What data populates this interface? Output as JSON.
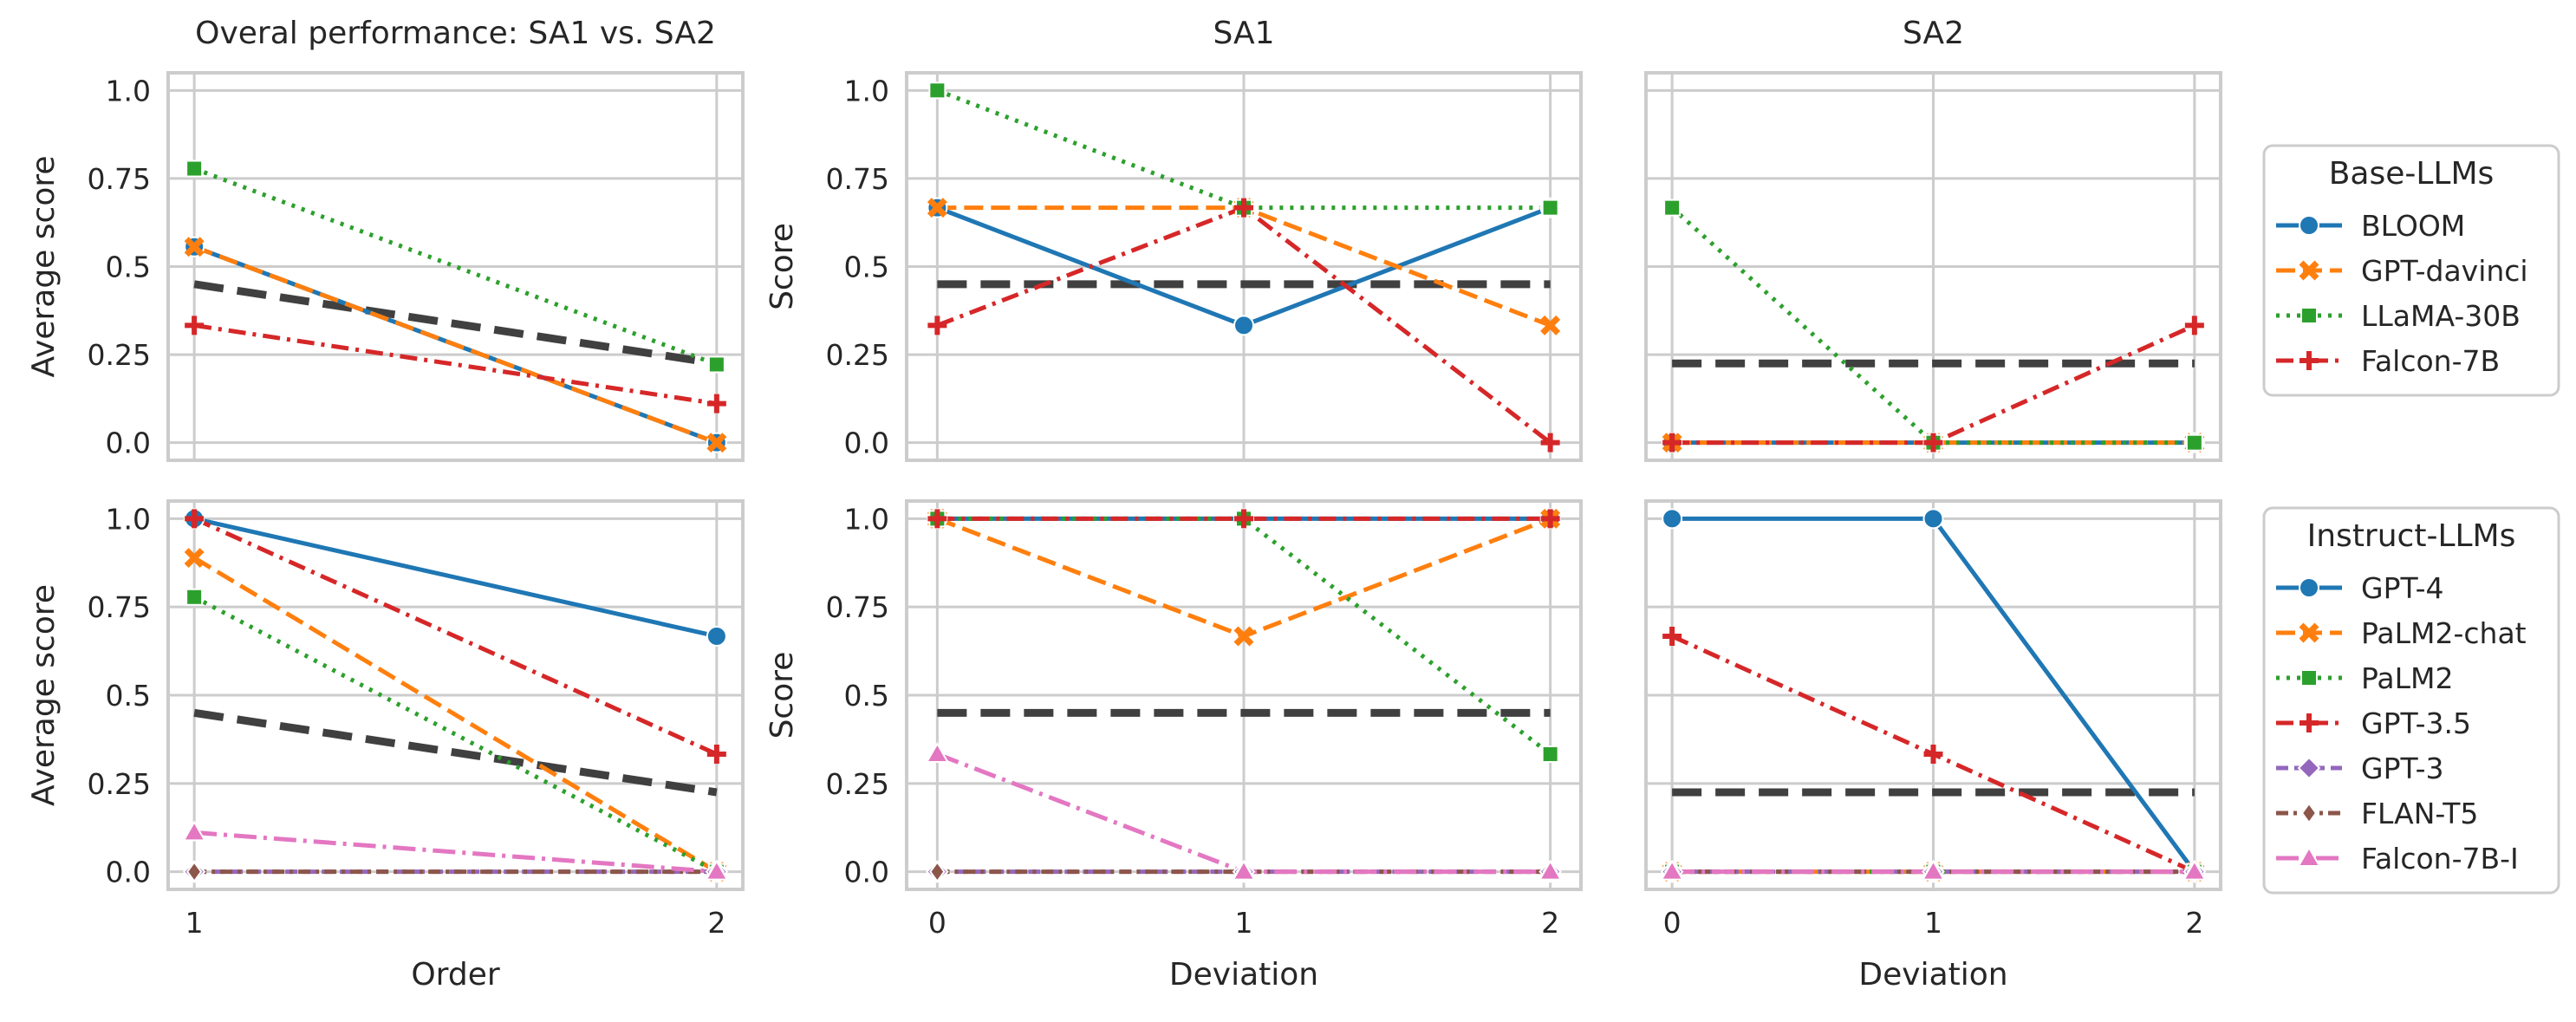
{
  "colors": {
    "BLOOM": "#1f77b4",
    "GPT-davinci": "#ff7f0e",
    "LLaMA-30B": "#2ca02c",
    "Falcon-7B": "#d62728",
    "GPT-4": "#1f77b4",
    "PaLM2-chat": "#ff7f0e",
    "PaLM2": "#2ca02c",
    "GPT-3.5": "#d62728",
    "GPT-3": "#9467bd",
    "FLAN-T5": "#8c564b",
    "Falcon-7B-I": "#e377c2",
    "reference": "#404040",
    "grid": "#cccccc",
    "frame": "#cccccc"
  },
  "legends": [
    {
      "title": "Base-LLMs",
      "entries": [
        {
          "name": "BLOOM",
          "marker": "circle",
          "dash": "solid"
        },
        {
          "name": "GPT-davinci",
          "marker": "x",
          "dash": "dashed"
        },
        {
          "name": "LLaMA-30B",
          "marker": "square",
          "dash": "dotted"
        },
        {
          "name": "Falcon-7B",
          "marker": "plus",
          "dash": "dashdot"
        }
      ]
    },
    {
      "title": "Instruct-LLMs",
      "entries": [
        {
          "name": "GPT-4",
          "marker": "circle",
          "dash": "solid"
        },
        {
          "name": "PaLM2-chat",
          "marker": "x",
          "dash": "dashed"
        },
        {
          "name": "PaLM2",
          "marker": "square",
          "dash": "dotted"
        },
        {
          "name": "GPT-3.5",
          "marker": "plus",
          "dash": "dashdot"
        },
        {
          "name": "GPT-3",
          "marker": "diamond",
          "dash": "dashed2"
        },
        {
          "name": "FLAN-T5",
          "marker": "thin-diamond",
          "dash": "dashdot2"
        },
        {
          "name": "Falcon-7B-I",
          "marker": "triangle",
          "dash": "dashdot3"
        }
      ]
    }
  ],
  "chart_data": [
    {
      "type": "line",
      "panel": "top-left",
      "title": "Overal performance: SA1 vs. SA2",
      "xlabel": "",
      "ylabel": "Average score",
      "x": [
        1,
        2
      ],
      "xlim": [
        0.95,
        2.05
      ],
      "ylim": [
        -0.05,
        1.05
      ],
      "xticks": [
        "1",
        "2"
      ],
      "yticks": [
        "0.0",
        "0.25",
        "0.5",
        "0.75",
        "1.0"
      ],
      "show_xticks": false,
      "show_yticks": true,
      "reference": {
        "name": "average",
        "values": [
          0.45,
          0.225
        ]
      },
      "series": [
        {
          "name": "BLOOM",
          "values": [
            0.556,
            0.0
          ]
        },
        {
          "name": "GPT-davinci",
          "values": [
            0.556,
            0.0
          ]
        },
        {
          "name": "LLaMA-30B",
          "values": [
            0.778,
            0.222
          ]
        },
        {
          "name": "Falcon-7B",
          "values": [
            0.333,
            0.111
          ]
        }
      ]
    },
    {
      "type": "line",
      "panel": "top-middle",
      "title": "SA1",
      "xlabel": "",
      "ylabel": "Score",
      "x": [
        0,
        1,
        2
      ],
      "xlim": [
        -0.1,
        2.1
      ],
      "ylim": [
        -0.05,
        1.05
      ],
      "xticks": [
        "0",
        "1",
        "2"
      ],
      "yticks": [
        "0.0",
        "0.25",
        "0.5",
        "0.75",
        "1.0"
      ],
      "show_xticks": false,
      "show_yticks": true,
      "reference": {
        "name": "average",
        "values": [
          0.45,
          0.45,
          0.45
        ]
      },
      "series": [
        {
          "name": "BLOOM",
          "values": [
            0.667,
            0.333,
            0.667
          ]
        },
        {
          "name": "GPT-davinci",
          "values": [
            0.667,
            0.667,
            0.333
          ]
        },
        {
          "name": "LLaMA-30B",
          "values": [
            1.0,
            0.667,
            0.667
          ]
        },
        {
          "name": "Falcon-7B",
          "values": [
            0.333,
            0.667,
            0.0
          ]
        }
      ]
    },
    {
      "type": "line",
      "panel": "top-right",
      "title": "SA2",
      "xlabel": "",
      "ylabel": "",
      "x": [
        0,
        1,
        2
      ],
      "xlim": [
        -0.1,
        2.1
      ],
      "ylim": [
        -0.05,
        1.05
      ],
      "xticks": [
        "0",
        "1",
        "2"
      ],
      "yticks": [
        "0.0",
        "0.25",
        "0.5",
        "0.75",
        "1.0"
      ],
      "show_xticks": false,
      "show_yticks": false,
      "reference": {
        "name": "average",
        "values": [
          0.225,
          0.225,
          0.225
        ]
      },
      "series": [
        {
          "name": "BLOOM",
          "values": [
            0.0,
            0.0,
            0.0
          ]
        },
        {
          "name": "GPT-davinci",
          "values": [
            0.0,
            0.0,
            0.0
          ]
        },
        {
          "name": "LLaMA-30B",
          "values": [
            0.667,
            0.0,
            0.0
          ]
        },
        {
          "name": "Falcon-7B",
          "values": [
            0.0,
            0.0,
            0.333
          ]
        }
      ]
    },
    {
      "type": "line",
      "panel": "bottom-left",
      "title": "",
      "xlabel": "Order",
      "ylabel": "Average score",
      "x": [
        1,
        2
      ],
      "xlim": [
        0.95,
        2.05
      ],
      "ylim": [
        -0.05,
        1.05
      ],
      "xticks": [
        "1",
        "2"
      ],
      "yticks": [
        "0.0",
        "0.25",
        "0.5",
        "0.75",
        "1.0"
      ],
      "show_xticks": true,
      "show_yticks": true,
      "reference": {
        "name": "average",
        "values": [
          0.45,
          0.225
        ]
      },
      "series": [
        {
          "name": "GPT-4",
          "values": [
            1.0,
            0.667
          ]
        },
        {
          "name": "PaLM2-chat",
          "values": [
            0.889,
            0.0
          ]
        },
        {
          "name": "PaLM2",
          "values": [
            0.778,
            0.0
          ]
        },
        {
          "name": "GPT-3.5",
          "values": [
            1.0,
            0.333
          ]
        },
        {
          "name": "GPT-3",
          "values": [
            0.0,
            0.0
          ]
        },
        {
          "name": "FLAN-T5",
          "values": [
            0.0,
            0.0
          ]
        },
        {
          "name": "Falcon-7B-I",
          "values": [
            0.111,
            0.0
          ]
        }
      ]
    },
    {
      "type": "line",
      "panel": "bottom-middle",
      "title": "",
      "xlabel": "Deviation",
      "ylabel": "Score",
      "x": [
        0,
        1,
        2
      ],
      "xlim": [
        -0.1,
        2.1
      ],
      "ylim": [
        -0.05,
        1.05
      ],
      "xticks": [
        "0",
        "1",
        "2"
      ],
      "yticks": [
        "0.0",
        "0.25",
        "0.5",
        "0.75",
        "1.0"
      ],
      "show_xticks": true,
      "show_yticks": true,
      "reference": {
        "name": "average",
        "values": [
          0.45,
          0.45,
          0.45
        ]
      },
      "series": [
        {
          "name": "GPT-4",
          "values": [
            1.0,
            1.0,
            1.0
          ]
        },
        {
          "name": "PaLM2-chat",
          "values": [
            1.0,
            0.667,
            1.0
          ]
        },
        {
          "name": "PaLM2",
          "values": [
            1.0,
            1.0,
            0.333
          ]
        },
        {
          "name": "GPT-3.5",
          "values": [
            1.0,
            1.0,
            1.0
          ]
        },
        {
          "name": "GPT-3",
          "values": [
            0.0,
            0.0,
            0.0
          ]
        },
        {
          "name": "FLAN-T5",
          "values": [
            0.0,
            0.0,
            0.0
          ]
        },
        {
          "name": "Falcon-7B-I",
          "values": [
            0.333,
            0.0,
            0.0
          ]
        }
      ]
    },
    {
      "type": "line",
      "panel": "bottom-right",
      "title": "",
      "xlabel": "Deviation",
      "ylabel": "",
      "x": [
        0,
        1,
        2
      ],
      "xlim": [
        -0.1,
        2.1
      ],
      "ylim": [
        -0.05,
        1.05
      ],
      "xticks": [
        "0",
        "1",
        "2"
      ],
      "yticks": [
        "0.0",
        "0.25",
        "0.5",
        "0.75",
        "1.0"
      ],
      "show_xticks": true,
      "show_yticks": false,
      "reference": {
        "name": "average",
        "values": [
          0.225,
          0.225,
          0.225
        ]
      },
      "series": [
        {
          "name": "GPT-4",
          "values": [
            1.0,
            1.0,
            0.0
          ]
        },
        {
          "name": "PaLM2-chat",
          "values": [
            0.0,
            0.0,
            0.0
          ]
        },
        {
          "name": "PaLM2",
          "values": [
            0.0,
            0.0,
            0.0
          ]
        },
        {
          "name": "GPT-3.5",
          "values": [
            0.667,
            0.333,
            0.0
          ]
        },
        {
          "name": "GPT-3",
          "values": [
            0.0,
            0.0,
            0.0
          ]
        },
        {
          "name": "FLAN-T5",
          "values": [
            0.0,
            0.0,
            0.0
          ]
        },
        {
          "name": "Falcon-7B-I",
          "values": [
            0.0,
            0.0,
            0.0
          ]
        }
      ]
    }
  ]
}
